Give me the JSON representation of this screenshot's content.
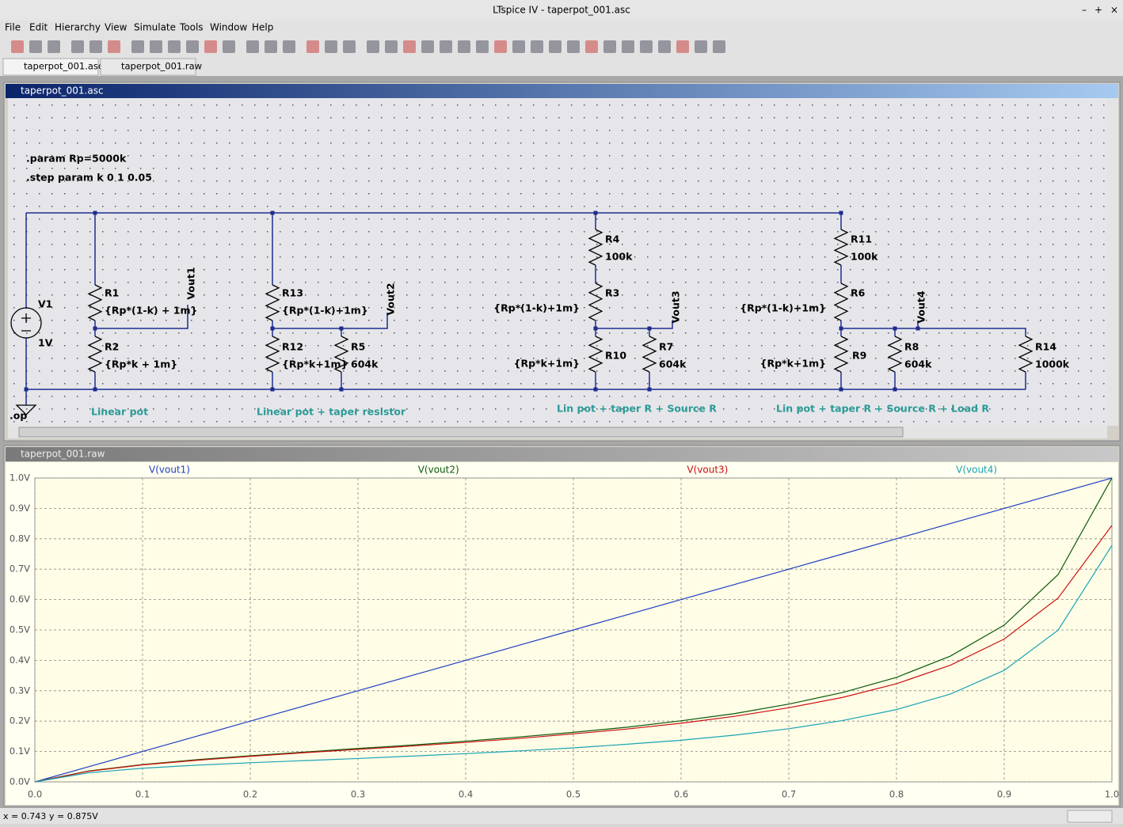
{
  "window": {
    "title": "LTspice IV - taperpot_001.asc"
  },
  "menu": [
    "File",
    "Edit",
    "Hierarchy",
    "View",
    "Simulate",
    "Tools",
    "Window",
    "Help"
  ],
  "tabs": [
    "taperpot_001.asc",
    "taperpot_001.raw"
  ],
  "schematic": {
    "title": "taperpot_001.asc",
    "labels": [
      ".param Rp=5000k",
      ".step param k 0 1 0.05",
      "V1",
      "1V",
      ".op",
      "R1",
      "{Rp*(1-k) + 1m}",
      "R2",
      "{Rp*k + 1m}",
      "Vout1",
      "R13",
      "{Rp*(1-k)+1m}",
      "R12",
      "{Rp*k+1m}",
      "R5",
      "604k",
      "Vout2",
      "R4",
      "100k",
      "R3",
      "{Rp*(1-k)+1m}",
      "R10",
      "{Rp*k+1m}",
      "R7",
      "604k",
      "Vout3",
      "R11",
      "100k",
      "R6",
      "{Rp*(1-k)+1m}",
      "R9",
      "{Rp*k+1m}",
      "R8",
      "604k",
      "R14",
      "1000k",
      "Vout4"
    ],
    "sections": [
      "Linear pot",
      "Linear pot + taper resistor",
      "Lin pot + taper R + Source R",
      "Lin pot + taper R + Source R + Load R"
    ]
  },
  "plot": {
    "title": "taperpot_001.raw"
  },
  "chart_data": {
    "type": "line",
    "x": [
      0,
      0.05,
      0.1,
      0.15,
      0.2,
      0.25,
      0.3,
      0.35,
      0.4,
      0.45,
      0.5,
      0.55,
      0.6,
      0.65,
      0.7,
      0.75,
      0.8,
      0.85,
      0.9,
      0.95,
      1
    ],
    "series": [
      {
        "name": "V(vout1)",
        "color": "#1f3fc4",
        "values": [
          0,
          0.05,
          0.1,
          0.15,
          0.2,
          0.25,
          0.3,
          0.35,
          0.4,
          0.45,
          0.5,
          0.55,
          0.6,
          0.65,
          0.7,
          0.75,
          0.8,
          0.85,
          0.9,
          0.95,
          1
        ]
      },
      {
        "name": "V(vout2)",
        "color": "#0b5a0b",
        "values": [
          0,
          0.036,
          0.057,
          0.073,
          0.086,
          0.098,
          0.11,
          0.121,
          0.134,
          0.148,
          0.163,
          0.18,
          0.201,
          0.225,
          0.256,
          0.294,
          0.344,
          0.414,
          0.516,
          0.682,
          1
        ]
      },
      {
        "name": "V(vout3)",
        "color": "#cc1010",
        "values": [
          0,
          0.035,
          0.056,
          0.071,
          0.084,
          0.096,
          0.107,
          0.118,
          0.13,
          0.143,
          0.158,
          0.174,
          0.193,
          0.216,
          0.244,
          0.278,
          0.323,
          0.384,
          0.47,
          0.605,
          0.844
        ]
      },
      {
        "name": "V(vout4)",
        "color": "#1aa3b5",
        "values": [
          0,
          0.03,
          0.045,
          0.055,
          0.063,
          0.07,
          0.077,
          0.085,
          0.093,
          0.102,
          0.112,
          0.124,
          0.137,
          0.154,
          0.175,
          0.202,
          0.238,
          0.289,
          0.367,
          0.499,
          0.778
        ]
      }
    ],
    "xlim": [
      0,
      1
    ],
    "ylim": [
      0,
      1
    ],
    "xticks": [
      {
        "value": 0,
        "label": "0.0"
      },
      0.1,
      0.2,
      0.3,
      0.4,
      0.5,
      0.6,
      0.7,
      0.8,
      0.9,
      {
        "value": 1,
        "label": "1.0"
      }
    ],
    "yticks": [
      {
        "value": 0,
        "label": "0.0V"
      },
      {
        "value": 0.1,
        "label": "0.1V"
      },
      {
        "value": 0.2,
        "label": "0.2V"
      },
      {
        "value": 0.3,
        "label": "0.3V"
      },
      {
        "value": 0.4,
        "label": "0.4V"
      },
      {
        "value": 0.5,
        "label": "0.5V"
      },
      {
        "value": 0.6,
        "label": "0.6V"
      },
      {
        "value": 0.7,
        "label": "0.7V"
      },
      {
        "value": 0.8,
        "label": "0.8V"
      },
      {
        "value": 0.9,
        "label": "0.9V"
      },
      {
        "value": 1,
        "label": "1.0V"
      }
    ],
    "grid": true
  },
  "status": {
    "x": "x = 0.743",
    "y": "y = 0.875V"
  }
}
